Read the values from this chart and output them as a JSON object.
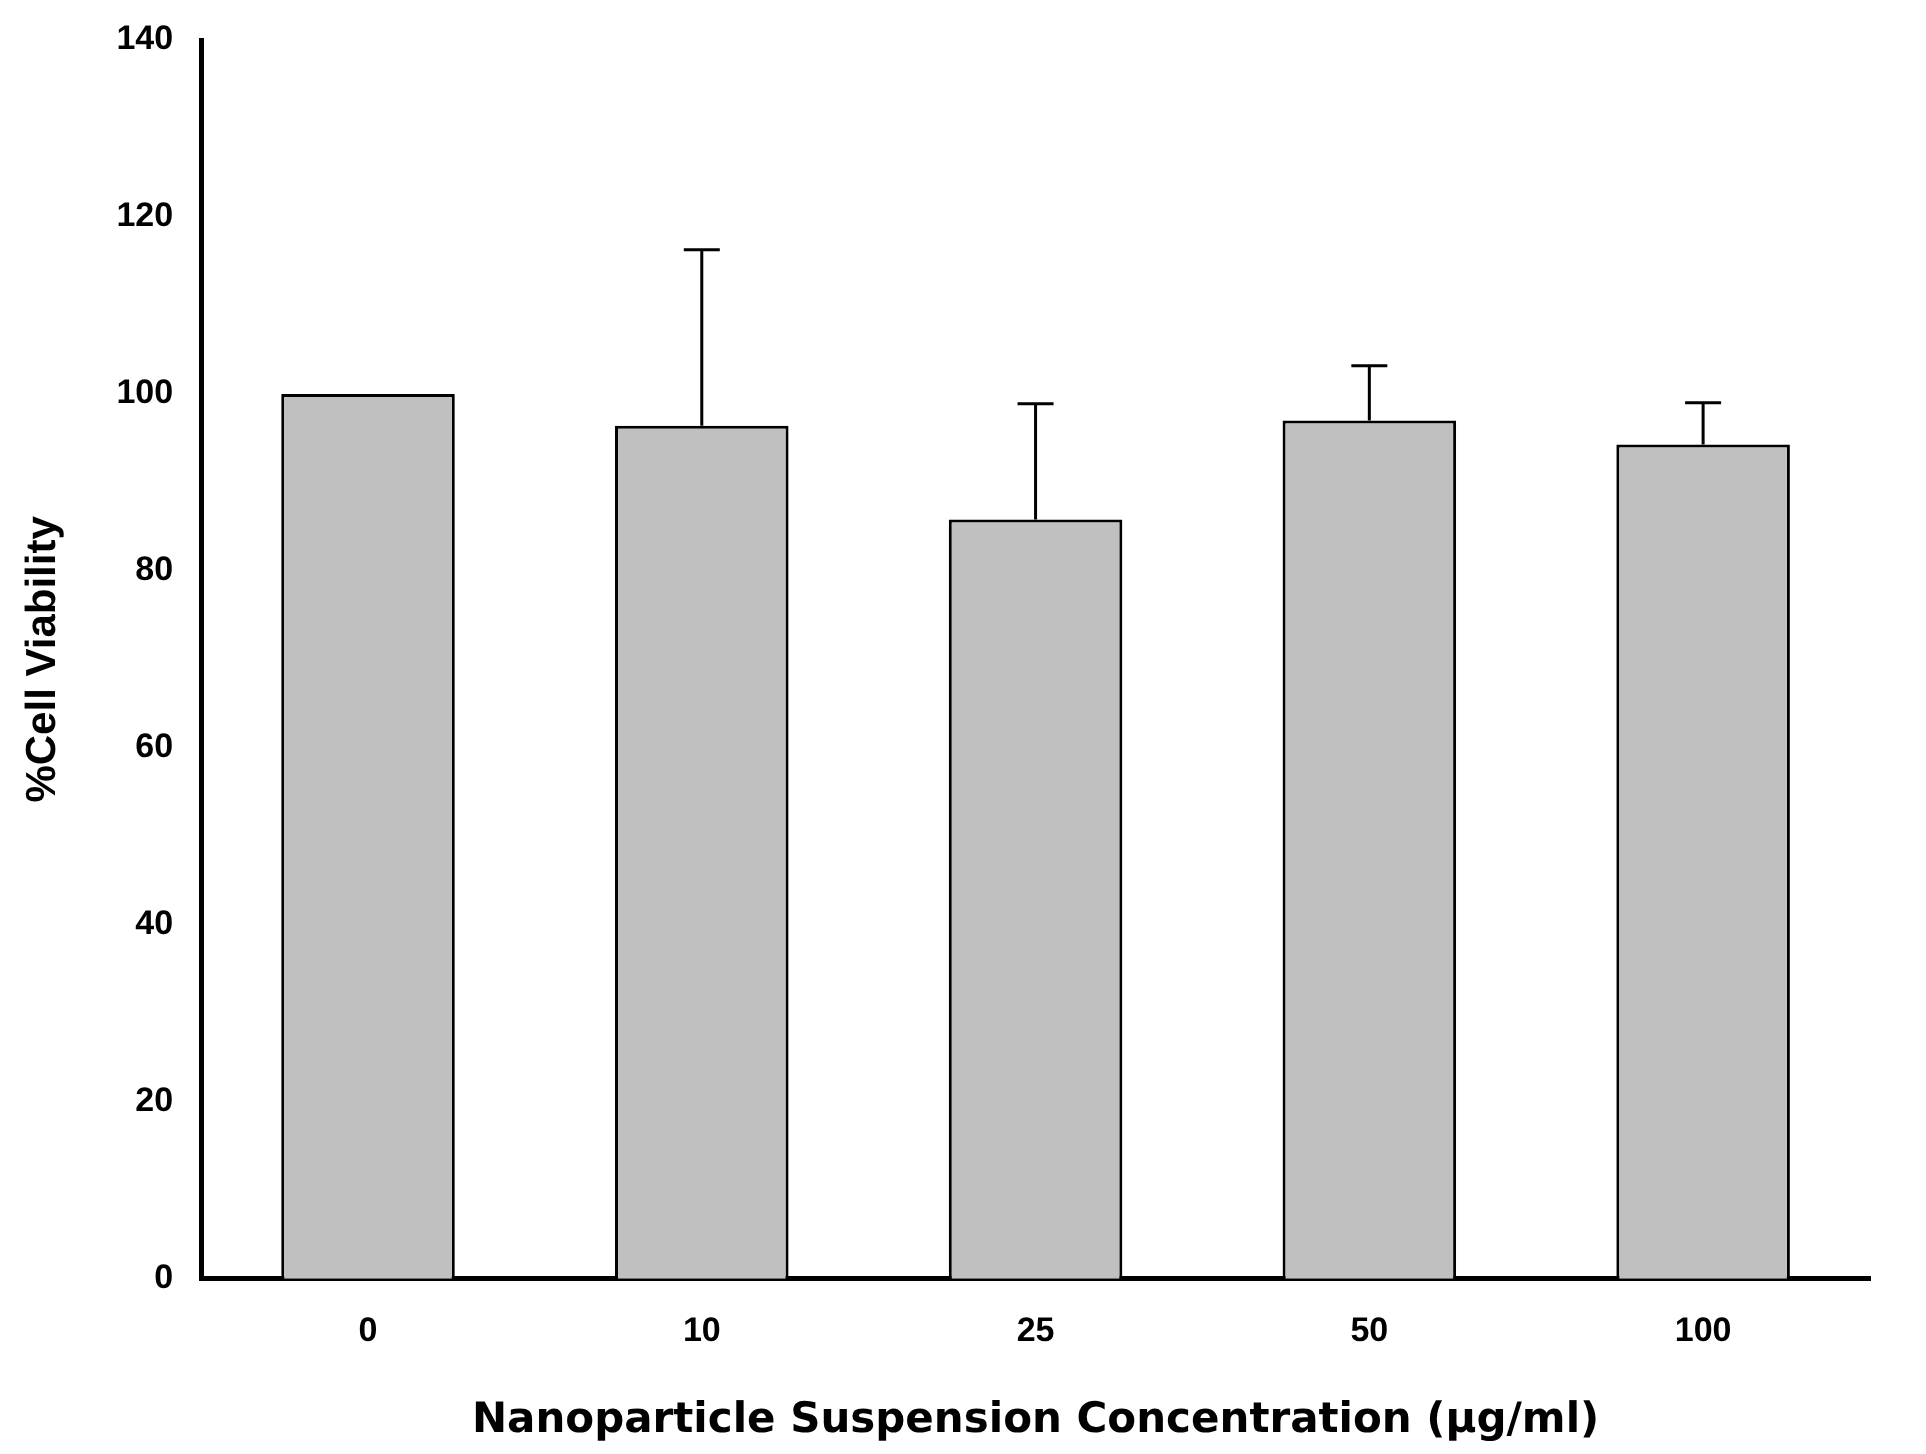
{
  "chart_data": {
    "type": "bar",
    "xlabel": "Nanoparticle Suspension Concentration (µg/ml)",
    "ylabel": "%Cell Viability",
    "categories": [
      "0",
      "10",
      "25",
      "50",
      "100"
    ],
    "values": [
      100,
      96.4,
      85.8,
      97.0,
      94.3
    ],
    "errors": [
      null,
      [
        96.4,
        116.3
      ],
      [
        85.8,
        98.9
      ],
      [
        97.0,
        103.2
      ],
      [
        94.3,
        99.0
      ]
    ],
    "color": "#c0c0c0",
    "ylim": [
      0,
      140
    ],
    "yticks": [
      0,
      20,
      40,
      60,
      80,
      100,
      120,
      140
    ],
    "grid": false,
    "legend": false
  }
}
